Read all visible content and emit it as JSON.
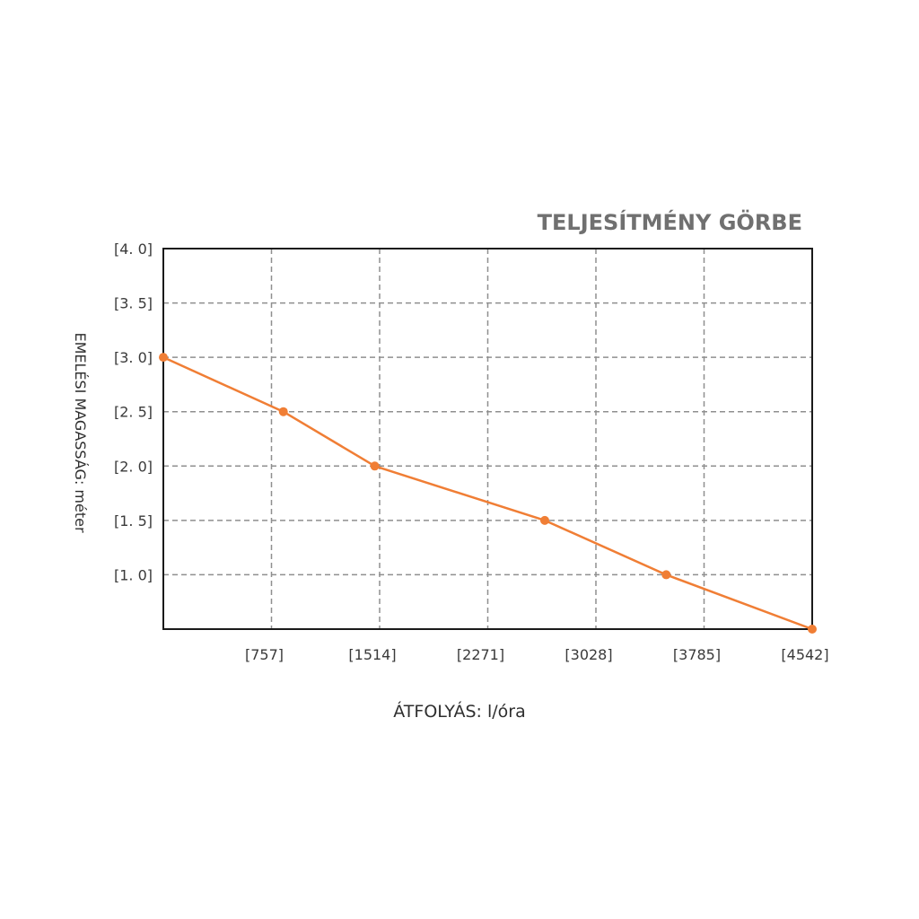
{
  "chart_data": {
    "type": "line",
    "title": "TELJESÍTMÉNY GÖRBE",
    "xlabel": "ÁTFOLYÁS: l/óra",
    "ylabel": "EMELÉSI MAGASSÁG: méter",
    "xlim": [
      0,
      4542
    ],
    "ylim": [
      0.5,
      4.0
    ],
    "grid": true,
    "x_ticks": [
      {
        "value": 757,
        "label": "[757]"
      },
      {
        "value": 1514,
        "label": "[1514]"
      },
      {
        "value": 2271,
        "label": "[2271]"
      },
      {
        "value": 3028,
        "label": "[3028]"
      },
      {
        "value": 3785,
        "label": "[3785]"
      },
      {
        "value": 4542,
        "label": "[4542]"
      }
    ],
    "y_ticks": [
      {
        "value": 4.0,
        "label": "[4. 0]"
      },
      {
        "value": 3.5,
        "label": "[3. 5]"
      },
      {
        "value": 3.0,
        "label": "[3. 0]"
      },
      {
        "value": 2.5,
        "label": "[2. 5]"
      },
      {
        "value": 2.0,
        "label": "[2. 0]"
      },
      {
        "value": 1.5,
        "label": "[1. 5]"
      },
      {
        "value": 1.0,
        "label": "[1. 0]"
      }
    ],
    "series": [
      {
        "color": "#F07E35",
        "x": [
          0,
          840,
          1480,
          2670,
          3520,
          4542
        ],
        "y": [
          3.0,
          2.5,
          2.0,
          1.5,
          1.0,
          0.5
        ]
      }
    ]
  }
}
